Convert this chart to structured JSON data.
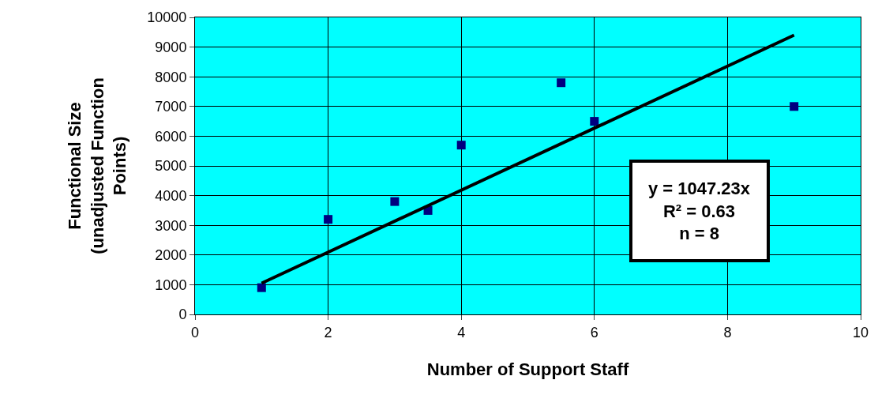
{
  "chart_data": {
    "type": "scatter",
    "xlabel": "Number of Support Staff",
    "ylabel": "Functional Size\n(unadjusted Function\nPoints)",
    "series": [
      {
        "color": "#000080",
        "marker": "square",
        "x": [
          1,
          2,
          3,
          3.5,
          4,
          5.5,
          6,
          9
        ],
        "values": [
          900,
          3200,
          3800,
          3500,
          5700,
          7800,
          6500,
          7000
        ]
      },
      {
        "type": "line",
        "color": "#000000",
        "marker": "none",
        "x": [
          1,
          9
        ],
        "values": [
          1050,
          9400
        ]
      }
    ],
    "xlim": [
      0,
      10
    ],
    "xticks": [
      0,
      2,
      4,
      6,
      8,
      10
    ],
    "ylim": [
      0,
      10000
    ],
    "yticks": [
      0,
      1000,
      2000,
      3000,
      4000,
      5000,
      6000,
      7000,
      8000,
      9000,
      10000
    ],
    "grid": true,
    "legend": false,
    "annotations": [
      "y = 1047.23x",
      "R² = 0.63",
      "n = 8"
    ]
  }
}
